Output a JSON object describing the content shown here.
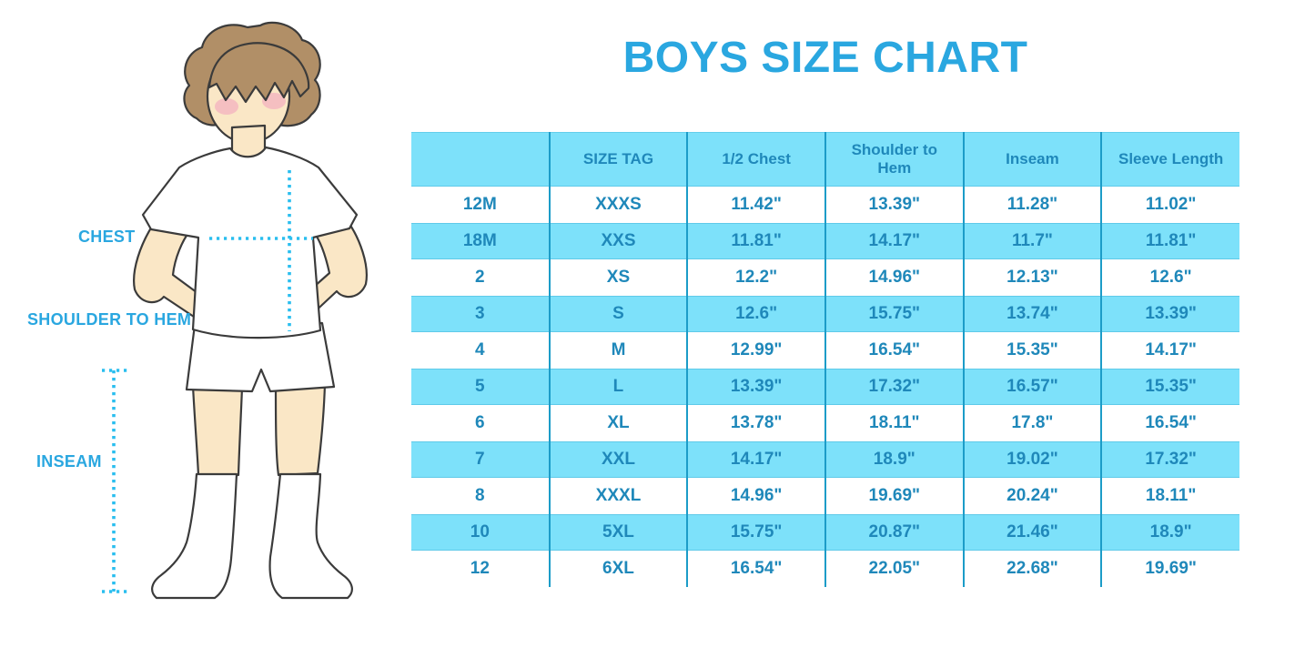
{
  "title": "BOYS SIZE CHART",
  "figure": {
    "illustration": "boy-in-white-tshirt-shorts-and-knee-socks",
    "labels": {
      "chest": "CHEST",
      "shoulder_to_hem": "SHOULDER TO HEM",
      "inseam": "INSEAM"
    }
  },
  "colors": {
    "accent": "#2AA7E0",
    "band": "#7DE1FA",
    "grid": "#1C9CC8",
    "tabletext": "#1F88BA",
    "measure": "#2ABEEF",
    "skin": "#FAE7C6",
    "hair": "#B18F67",
    "cheek": "#F2A9BE",
    "outline": "#3B3B3B"
  },
  "chart_data": {
    "type": "table",
    "title": "BOYS SIZE CHART",
    "columns": [
      "",
      "SIZE TAG",
      "1/2 Chest",
      "Shoulder to Hem",
      "Inseam",
      "Sleeve Length"
    ],
    "rows": [
      [
        "12M",
        "XXXS",
        "11.42\"",
        "13.39\"",
        "11.28\"",
        "11.02\""
      ],
      [
        "18M",
        "XXS",
        "11.81\"",
        "14.17\"",
        "11.7\"",
        "11.81\""
      ],
      [
        "2",
        "XS",
        "12.2\"",
        "14.96\"",
        "12.13\"",
        "12.6\""
      ],
      [
        "3",
        "S",
        "12.6\"",
        "15.75\"",
        "13.74\"",
        "13.39\""
      ],
      [
        "4",
        "M",
        "12.99\"",
        "16.54\"",
        "15.35\"",
        "14.17\""
      ],
      [
        "5",
        "L",
        "13.39\"",
        "17.32\"",
        "16.57\"",
        "15.35\""
      ],
      [
        "6",
        "XL",
        "13.78\"",
        "18.11\"",
        "17.8\"",
        "16.54\""
      ],
      [
        "7",
        "XXL",
        "14.17\"",
        "18.9\"",
        "19.02\"",
        "17.32\""
      ],
      [
        "8",
        "XXXL",
        "14.96\"",
        "19.69\"",
        "20.24\"",
        "18.11\""
      ],
      [
        "10",
        "5XL",
        "15.75\"",
        "20.87\"",
        "21.46\"",
        "18.9\""
      ],
      [
        "12",
        "6XL",
        "16.54\"",
        "22.05\"",
        "22.68\"",
        "19.69\""
      ]
    ],
    "layout": {
      "striping": "alternating-cyan-white",
      "header_fill": "cyan",
      "outer_border": false
    }
  }
}
